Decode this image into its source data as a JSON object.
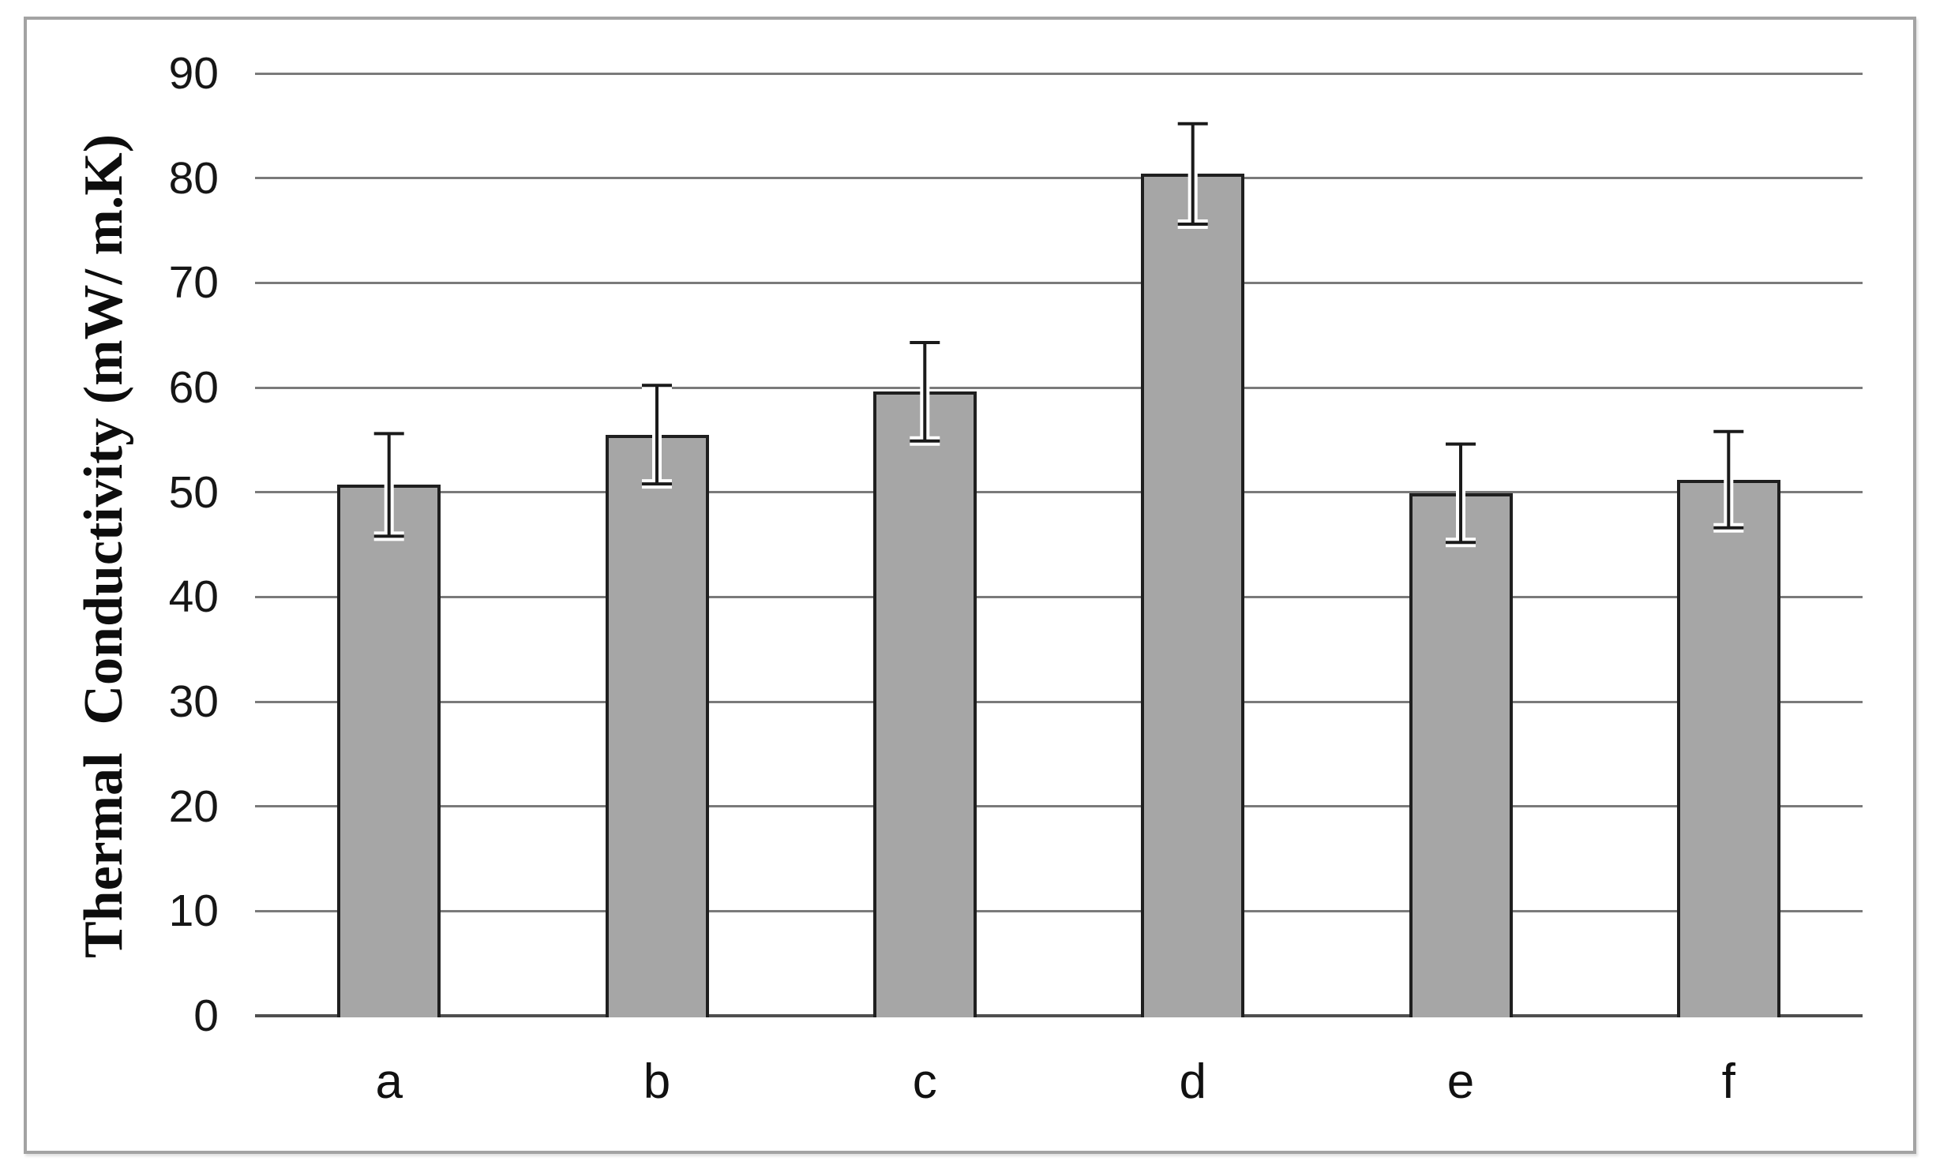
{
  "figure": {
    "description": "bar chart with error bars inside a gray rectangular frame",
    "background_color": "#ffffff",
    "frame_border_color": "#a3a3a3"
  },
  "chart_data": {
    "type": "bar",
    "title": "",
    "categories": [
      "a",
      "b",
      "c",
      "d",
      "e",
      "f"
    ],
    "values": [
      50.7,
      55.5,
      59.6,
      80.4,
      49.9,
      51.2
    ],
    "error_bars_plus_minus": [
      4.9,
      4.7,
      4.7,
      4.8,
      4.7,
      4.6
    ],
    "xlabel": "",
    "ylabel": "Thermal  Conductivity (mW/ m.K)",
    "ylim": [
      0,
      90
    ],
    "yticks": [
      0,
      10,
      20,
      30,
      40,
      50,
      60,
      70,
      80,
      90
    ],
    "grid": "horizontal gridlines on",
    "legend": "none",
    "bar_fill_color": "#a6a6a6",
    "bar_border_color": "#1f1f1f",
    "gridline_color": "#7a7a7a",
    "axis_line_color": "#4f4f4f",
    "error_bar_color": "#1a1a1a",
    "tick_label_color": "#161616"
  }
}
